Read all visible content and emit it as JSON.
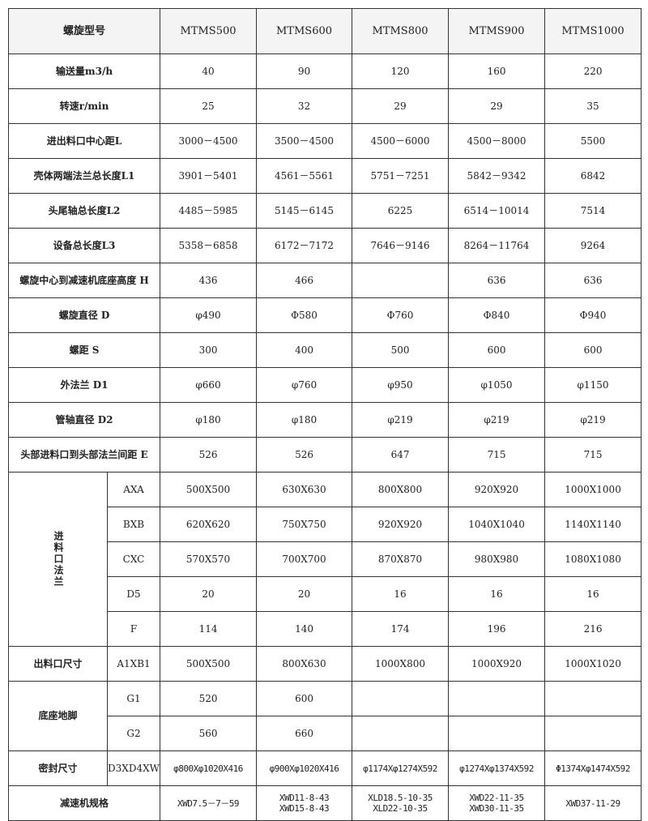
{
  "header": {
    "label": "螺旋型号",
    "models": [
      "MTMS500",
      "MTMS600",
      "MTMS800",
      "MTMS900",
      "MTMS1000"
    ]
  },
  "rows": [
    {
      "label": "输送量m3/h",
      "values": [
        "40",
        "90",
        "120",
        "160",
        "220"
      ]
    },
    {
      "label": "转速r/min",
      "values": [
        "25",
        "32",
        "29",
        "29",
        "35"
      ]
    },
    {
      "label": "进出料口中心距L",
      "values": [
        "3000－4500",
        "3500－4500",
        "4500－6000",
        "4500－8000",
        "5500"
      ]
    },
    {
      "label": "壳体两端法兰总长度L1",
      "values": [
        "3901－5401",
        "4561－5561",
        "5751－7251",
        "5842－9342",
        "6842"
      ]
    },
    {
      "label": "头尾轴总长度L2",
      "values": [
        "4485－5985",
        "5145－6145",
        "6225",
        "6514－10014",
        "7514"
      ]
    },
    {
      "label": "设备总长度L3",
      "values": [
        "5358－6858",
        "6172－7172",
        "7646－9146",
        "8264－11764",
        "9264"
      ]
    },
    {
      "label": "螺旋中心到减速机底座高度 H",
      "values": [
        "436",
        "466",
        "",
        "636",
        "636"
      ]
    },
    {
      "label": "螺旋直径 D",
      "values": [
        "φ490",
        "Φ580",
        "Φ760",
        "Φ840",
        "Φ940"
      ]
    },
    {
      "label": "螺距 S",
      "values": [
        "300",
        "400",
        "500",
        "600",
        "600"
      ]
    },
    {
      "label": "外法兰 D1",
      "values": [
        "φ660",
        "φ760",
        "φ950",
        "φ1050",
        "φ1150"
      ]
    },
    {
      "label": "管轴直径 D2",
      "values": [
        "φ180",
        "φ180",
        "φ219",
        "φ219",
        "φ219"
      ]
    },
    {
      "label": "头部进料口到头部法兰间距 E",
      "values": [
        "526",
        "526",
        "647",
        "715",
        "715"
      ]
    }
  ],
  "inlet_flange": {
    "label": "进料口法兰",
    "rows": [
      {
        "sub": "AXA",
        "values": [
          "500X500",
          "630X630",
          "800X800",
          "920X920",
          "1000X1000"
        ]
      },
      {
        "sub": "BXB",
        "values": [
          "620X620",
          "750X750",
          "920X920",
          "1040X1040",
          "1140X1140"
        ]
      },
      {
        "sub": "CXC",
        "values": [
          "570X570",
          "700X700",
          "870X870",
          "980X980",
          "1080X1080"
        ]
      },
      {
        "sub": "D5",
        "values": [
          "20",
          "20",
          "16",
          "16",
          "16"
        ]
      },
      {
        "sub": "F",
        "values": [
          "114",
          "140",
          "174",
          "196",
          "216"
        ]
      }
    ]
  },
  "outlet": {
    "label": "出料口尺寸",
    "sub": "A1XB1",
    "values": [
      "500X500",
      "800X630",
      "1000X800",
      "1000X920",
      "1000X1020"
    ]
  },
  "base": {
    "label": "底座地脚",
    "rows": [
      {
        "sub": "G1",
        "values": [
          "520",
          "600",
          "",
          "",
          ""
        ]
      },
      {
        "sub": "G2",
        "values": [
          "560",
          "660",
          "",
          "",
          ""
        ]
      }
    ]
  },
  "seal": {
    "label": "密封尺寸",
    "sub": "D3XD4XW",
    "values": [
      "φ800Xφ1020X416",
      "φ900Xφ1020X416",
      "φ1174Xφ1274X592",
      "φ1274Xφ1374X592",
      "Φ1374Xφ1474X592"
    ]
  },
  "reducer": {
    "label": "减速机规格",
    "values": [
      [
        "XWD7.5－7－59"
      ],
      [
        "XWD11-8-43",
        "XWD15-8-43"
      ],
      [
        "XLD18.5-10-35",
        "XLD22-10-35"
      ],
      [
        "XWD22-11-35",
        "XWD30-11-35"
      ],
      [
        "XWD37-11-29"
      ]
    ]
  }
}
